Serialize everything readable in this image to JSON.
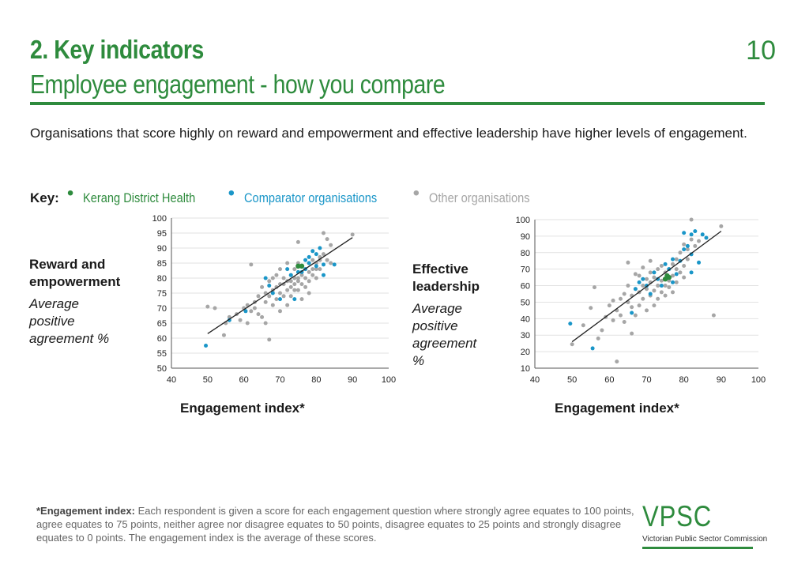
{
  "header": {
    "title": "2. Key indicators",
    "subtitle": "Employee engagement - how you compare",
    "page_number": "10"
  },
  "intro": "Organisations that score highly on reward and empowerment and effective leadership have higher levels of engagement.",
  "key": {
    "label": "Key:",
    "items": [
      {
        "label": "Kerang District Health",
        "color": "#2e8b3d"
      },
      {
        "label": "Comparator organisations",
        "color": "#1a96c8"
      },
      {
        "label": "Other organisations",
        "color": "#a6a6a6"
      }
    ]
  },
  "left_panel": {
    "title_line1": "Reward and",
    "title_line2": "empowerment",
    "sub_line1": "Average",
    "sub_line2": "positive",
    "sub_line3": "agreement %",
    "xlabel": "Engagement index*"
  },
  "right_panel": {
    "title_line1": "Effective",
    "title_line2": "leadership",
    "sub_line1": "Average",
    "sub_line2": "positive",
    "sub_line3": "agreement",
    "sub_line4": "%",
    "xlabel": "Engagement index*"
  },
  "chart_data": [
    {
      "type": "scatter",
      "xlabel": "Engagement index*",
      "ylabel": "Reward and empowerment Average positive agreement %",
      "xlim": [
        40,
        100
      ],
      "ylim": [
        50,
        100
      ],
      "xticks": [
        40,
        50,
        60,
        70,
        80,
        90,
        100
      ],
      "yticks": [
        50,
        55,
        60,
        65,
        70,
        75,
        80,
        85,
        90,
        95,
        100
      ],
      "grid": true,
      "trendline": {
        "x": [
          50,
          90
        ],
        "y": [
          61.5,
          93.5
        ]
      },
      "series": [
        {
          "name": "Kerang District Health",
          "color": "#2e8b3d",
          "points": [
            [
              75,
              84
            ],
            [
              76,
              84
            ]
          ]
        },
        {
          "name": "Comparator organisations",
          "color": "#1a96c8",
          "points": [
            [
              49.5,
              57.5
            ],
            [
              56,
              66
            ],
            [
              60.5,
              69
            ],
            [
              66,
              80
            ],
            [
              67,
              77.5
            ],
            [
              68,
              75
            ],
            [
              70,
              73
            ],
            [
              72,
              83
            ],
            [
              73,
              81
            ],
            [
              74,
              73
            ],
            [
              75,
              82
            ],
            [
              76,
              82
            ],
            [
              77,
              83
            ],
            [
              78,
              87
            ],
            [
              78,
              85
            ],
            [
              79,
              89
            ],
            [
              80,
              88
            ],
            [
              80,
              84
            ],
            [
              81,
              90
            ],
            [
              82,
              81
            ],
            [
              82,
              84.5
            ],
            [
              77,
              86
            ],
            [
              85,
              84.5
            ]
          ]
        },
        {
          "name": "Other organisations",
          "color": "#a6a6a6",
          "points": [
            [
              50,
              70.5
            ],
            [
              52,
              70
            ],
            [
              54.5,
              61
            ],
            [
              55,
              65
            ],
            [
              56,
              67
            ],
            [
              58,
              68
            ],
            [
              59,
              66
            ],
            [
              60,
              70
            ],
            [
              61,
              71
            ],
            [
              61,
              65
            ],
            [
              62,
              84.5
            ],
            [
              62,
              69
            ],
            [
              63,
              72
            ],
            [
              63,
              70
            ],
            [
              64,
              74
            ],
            [
              64,
              68
            ],
            [
              65,
              67
            ],
            [
              65,
              77
            ],
            [
              66,
              72
            ],
            [
              66,
              75
            ],
            [
              66,
              65
            ],
            [
              67,
              59.5
            ],
            [
              67,
              74
            ],
            [
              67,
              79
            ],
            [
              68,
              76
            ],
            [
              68,
              71
            ],
            [
              68,
              80
            ],
            [
              69,
              77
            ],
            [
              69,
              73
            ],
            [
              69,
              81
            ],
            [
              70,
              75
            ],
            [
              70,
              78
            ],
            [
              70,
              83
            ],
            [
              70,
              69
            ],
            [
              71,
              78
            ],
            [
              71,
              74
            ],
            [
              71,
              80
            ],
            [
              72,
              76
            ],
            [
              72,
              79
            ],
            [
              72,
              71
            ],
            [
              72,
              85
            ],
            [
              73,
              77
            ],
            [
              73,
              74
            ],
            [
              73,
              81
            ],
            [
              73,
              79
            ],
            [
              74,
              78
            ],
            [
              74,
              83
            ],
            [
              74,
              80
            ],
            [
              74,
              76
            ],
            [
              75,
              79
            ],
            [
              75,
              85
            ],
            [
              75,
              80
            ],
            [
              75,
              92
            ],
            [
              75,
              76
            ],
            [
              76,
              78
            ],
            [
              76,
              81
            ],
            [
              76,
              84
            ],
            [
              76,
              73
            ],
            [
              77,
              80
            ],
            [
              77,
              77
            ],
            [
              77,
              83
            ],
            [
              78,
              79
            ],
            [
              78,
              82
            ],
            [
              78,
              85
            ],
            [
              78,
              75
            ],
            [
              79,
              83
            ],
            [
              79,
              86
            ],
            [
              79,
              81
            ],
            [
              80,
              85
            ],
            [
              80,
              83
            ],
            [
              80,
              80
            ],
            [
              81,
              86
            ],
            [
              81,
              83
            ],
            [
              81,
              87
            ],
            [
              82,
              88
            ],
            [
              82,
              95
            ],
            [
              83,
              93
            ],
            [
              83,
              86
            ],
            [
              84,
              91
            ],
            [
              84,
              85
            ],
            [
              90,
              94.5
            ]
          ]
        }
      ]
    },
    {
      "type": "scatter",
      "xlabel": "Engagement index*",
      "ylabel": "Effective leadership Average positive agreement %",
      "xlim": [
        40,
        100
      ],
      "ylim": [
        10,
        100
      ],
      "xticks": [
        40,
        50,
        60,
        70,
        80,
        90,
        100
      ],
      "yticks": [
        10,
        20,
        30,
        40,
        50,
        60,
        70,
        80,
        90,
        100
      ],
      "grid": true,
      "trendline": {
        "x": [
          50,
          90
        ],
        "y": [
          26,
          93
        ]
      },
      "series": [
        {
          "name": "Kerang District Health",
          "color": "#2e8b3d",
          "points": [
            [
              75,
              64
            ],
            [
              76,
              65
            ],
            [
              75.5,
              66
            ]
          ]
        },
        {
          "name": "Comparator organisations",
          "color": "#1a96c8",
          "points": [
            [
              49.5,
              37
            ],
            [
              55.5,
              22
            ],
            [
              66,
              43.5
            ],
            [
              67,
              58
            ],
            [
              68,
              62
            ],
            [
              69,
              64
            ],
            [
              70,
              60
            ],
            [
              71,
              55
            ],
            [
              72,
              68
            ],
            [
              73,
              64
            ],
            [
              74,
              60
            ],
            [
              75,
              73
            ],
            [
              76,
              70
            ],
            [
              77,
              62
            ],
            [
              77,
              76
            ],
            [
              78,
              67
            ],
            [
              79,
              75
            ],
            [
              80,
              82
            ],
            [
              80,
              92
            ],
            [
              81,
              84
            ],
            [
              82,
              91
            ],
            [
              82,
              79
            ],
            [
              83,
              93
            ],
            [
              85,
              91
            ],
            [
              86,
              89
            ],
            [
              82,
              68
            ],
            [
              84,
              74
            ]
          ]
        },
        {
          "name": "Other organisations",
          "color": "#a6a6a6",
          "points": [
            [
              50,
              24.5
            ],
            [
              53,
              36
            ],
            [
              55,
              46.5
            ],
            [
              56,
              59
            ],
            [
              57,
              28
            ],
            [
              58,
              33
            ],
            [
              59,
              41
            ],
            [
              60,
              48
            ],
            [
              61,
              51
            ],
            [
              61,
              39
            ],
            [
              62,
              14
            ],
            [
              62,
              45
            ],
            [
              63,
              52
            ],
            [
              63,
              42
            ],
            [
              64,
              55
            ],
            [
              64,
              38
            ],
            [
              65,
              50
            ],
            [
              65,
              74
            ],
            [
              65,
              60
            ],
            [
              66,
              54
            ],
            [
              66,
              47
            ],
            [
              66,
              31
            ],
            [
              67,
              58
            ],
            [
              67,
              67
            ],
            [
              67,
              42
            ],
            [
              68,
              56
            ],
            [
              68,
              66
            ],
            [
              68,
              48
            ],
            [
              69,
              60
            ],
            [
              69,
              52
            ],
            [
              69,
              71
            ],
            [
              70,
              64
            ],
            [
              70,
              58
            ],
            [
              70,
              45
            ],
            [
              71,
              62
            ],
            [
              71,
              68
            ],
            [
              71,
              54
            ],
            [
              71,
              75
            ],
            [
              72,
              57
            ],
            [
              72,
              65
            ],
            [
              72,
              48
            ],
            [
              73,
              60
            ],
            [
              73,
              70
            ],
            [
              73,
              52
            ],
            [
              74,
              63
            ],
            [
              74,
              56
            ],
            [
              74,
              72
            ],
            [
              75,
              60
            ],
            [
              75,
              68
            ],
            [
              75,
              54
            ],
            [
              76,
              63
            ],
            [
              76,
              70
            ],
            [
              76,
              59
            ],
            [
              77,
              66
            ],
            [
              77,
              73
            ],
            [
              77,
              56
            ],
            [
              78,
              70
            ],
            [
              78,
              62
            ],
            [
              78,
              76
            ],
            [
              79,
              68
            ],
            [
              79,
              80
            ],
            [
              80,
              72
            ],
            [
              80,
              65
            ],
            [
              80,
              85
            ],
            [
              81,
              76
            ],
            [
              81,
              82
            ],
            [
              82,
              88
            ],
            [
              83,
              84
            ],
            [
              84,
              87
            ],
            [
              82,
              100
            ],
            [
              88,
              42
            ],
            [
              90,
              96
            ]
          ]
        }
      ]
    }
  ],
  "footnote": {
    "bold": "*Engagement index:",
    "text": " Each respondent is given a score for each engagement question where strongly agree equates to 100 points, agree equates to 75 points, neither agree nor disagree equates to 50 points, disagree equates to 25 points and strongly disagree equates to 0 points. The engagement index is the average of these scores."
  },
  "logo": {
    "text": "VPSC",
    "sub": "Victorian Public Sector Commission"
  }
}
